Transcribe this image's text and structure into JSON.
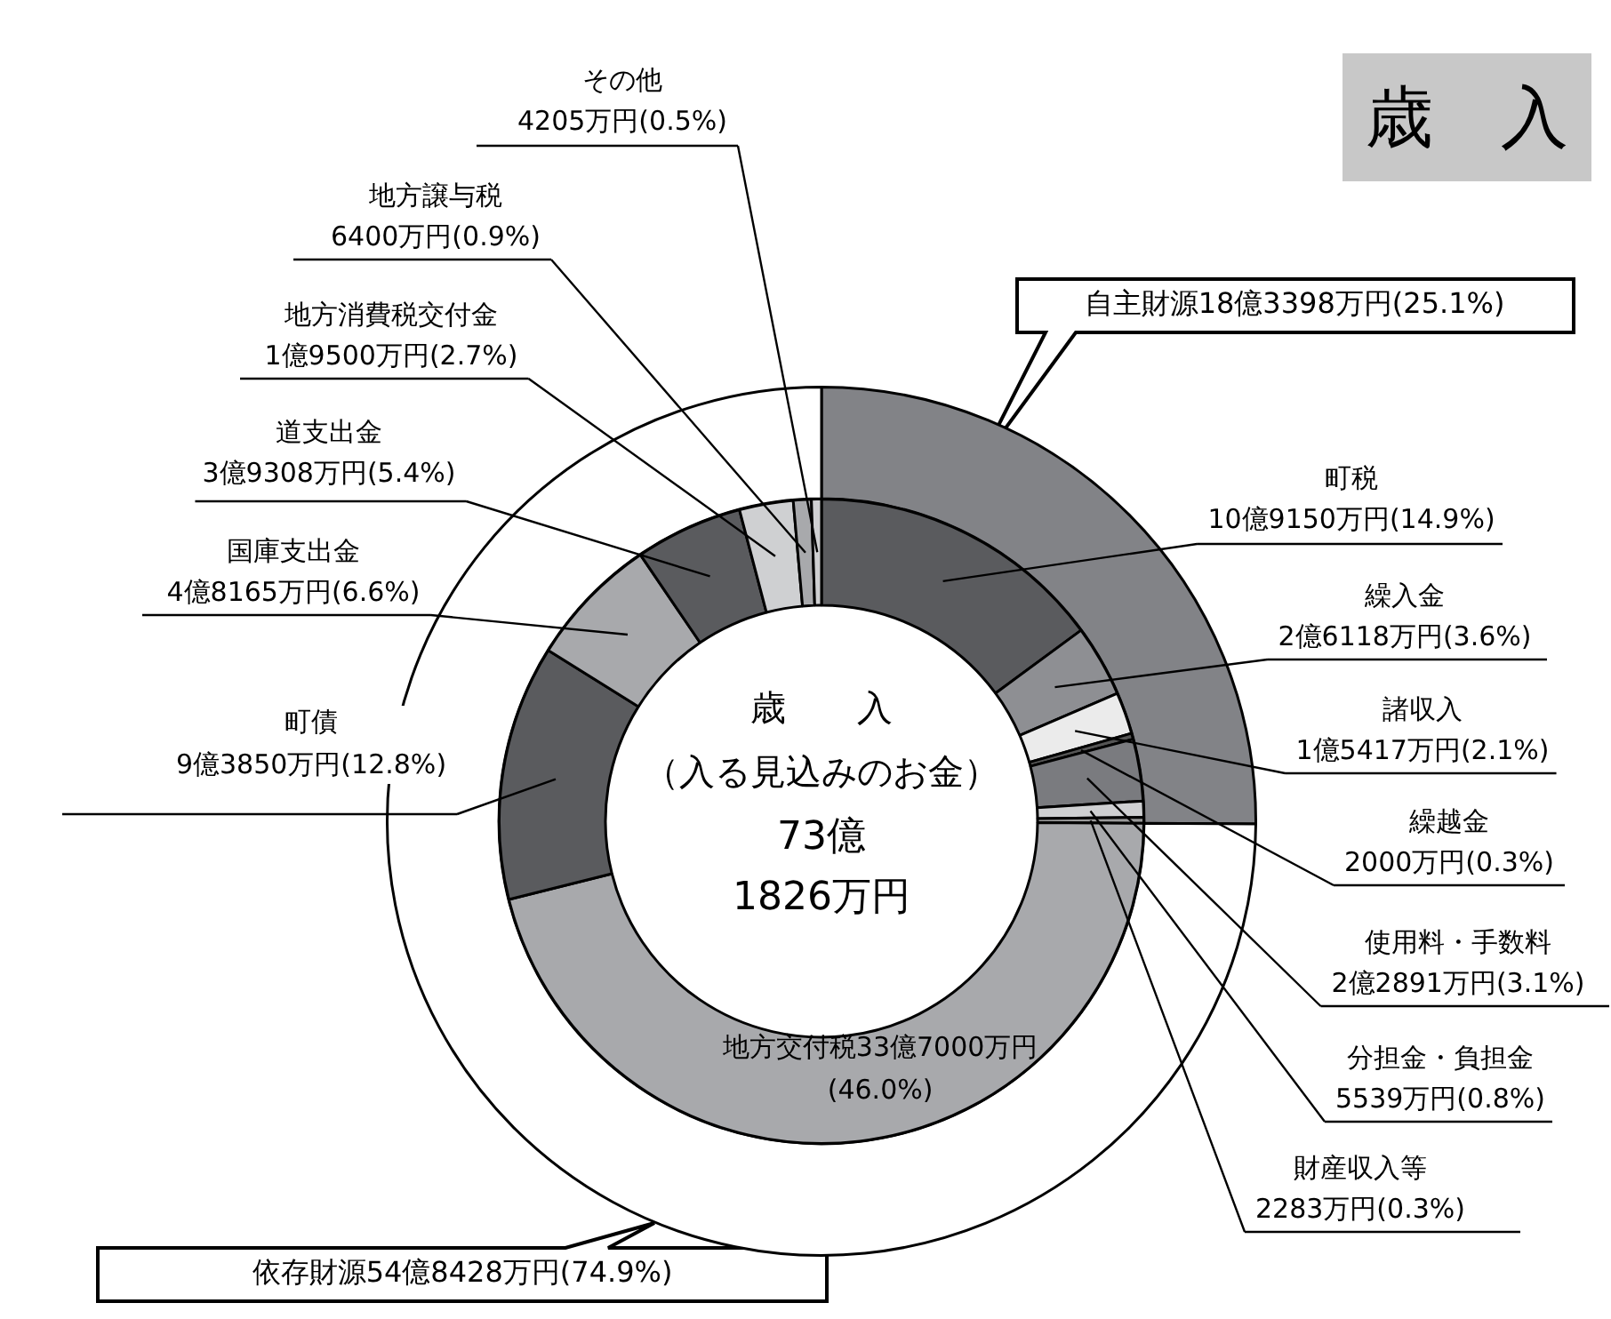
{
  "chart_data": [
    {
      "type": "donut",
      "title": "歳　入",
      "categories": [
        "自主財源",
        "依存財源"
      ],
      "values": [
        25.1,
        74.9
      ],
      "colors": [
        "#828387",
        "#ffffff"
      ],
      "value_labels": [
        "18億3398万円(25.1%)",
        "54億8428万円(74.9%)"
      ]
    },
    {
      "type": "donut",
      "annotations": [
        "歳　　入",
        "（入る見込みのお金）",
        "73億",
        "1826万円"
      ],
      "categories": [
        "町税",
        "繰入金",
        "諸収入",
        "繰越金",
        "使用料・手数料",
        "分担金・負担金",
        "財産収入等",
        "地方交付税",
        "町債",
        "国庫支出金",
        "道支出金",
        "地方消費税交付金",
        "地方譲与税",
        "その他"
      ],
      "values": [
        14.9,
        3.6,
        2.1,
        0.3,
        3.1,
        0.8,
        0.3,
        46.0,
        12.8,
        6.6,
        5.4,
        2.7,
        0.9,
        0.5
      ],
      "colors": [
        "#5a5b5e",
        "#8e8f93",
        "#ebebeb",
        "#555555",
        "#7a7b7f",
        "#cfd0d2",
        "#999999",
        "#a8a9ac",
        "#5a5b5e",
        "#a8a9ac",
        "#5a5b5e",
        "#cfd0d2",
        "#a8a9ac",
        "#cfd0d2"
      ],
      "value_labels": [
        "10億9150万円(14.9%)",
        "2億6118万円(3.6%)",
        "1億5417万円(2.1%)",
        "2000万円(0.3%)",
        "2億2891万円(3.1%)",
        "5539万円(0.8%)",
        "2283万円(0.3%)",
        "33億7000万円(46.0%)",
        "9億3850万円(12.8%)",
        "4億8165万円(6.6%)",
        "3億9308万円(5.4%)",
        "1億9500万円(2.7%)",
        "6400万円(0.9%)",
        "4205万円(0.5%)"
      ]
    }
  ]
}
